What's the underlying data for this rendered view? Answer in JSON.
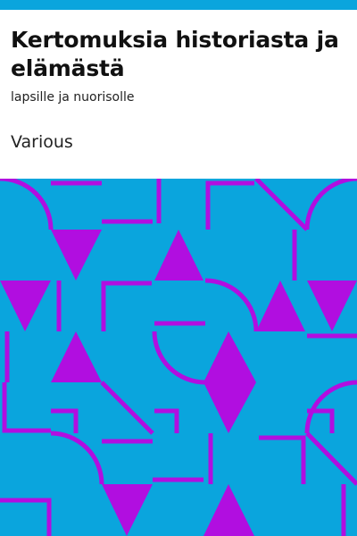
{
  "colors": {
    "accent": "#0aa5dd",
    "pattern_background": "#0aa5dd",
    "pattern_foreground": "#b10ee0",
    "text": "#111111"
  },
  "cover": {
    "title": "Kertomuksia historiasta ja elämästä",
    "subtitle": "lapsille ja nuorisolle",
    "author": "Various"
  }
}
